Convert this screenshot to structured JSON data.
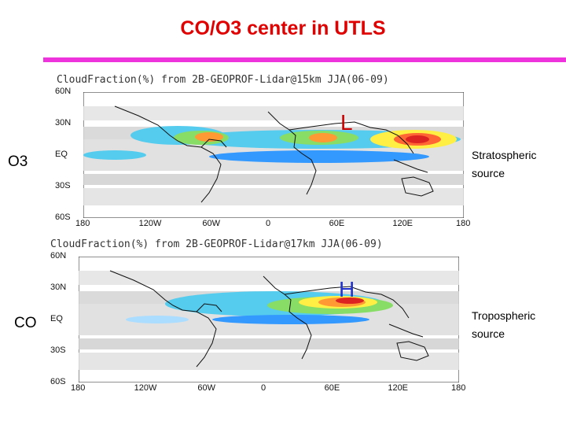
{
  "title": "CO/O3 center in UTLS",
  "colors": {
    "title": "#e00000",
    "rule": "#ee33dd",
    "low_marker": "#cc0000",
    "high_marker": "#2233cc"
  },
  "side_labels": {
    "top": "O3",
    "bottom": "CO"
  },
  "notes": {
    "top": [
      "Stratospheric",
      "source"
    ],
    "bottom": [
      "Tropospheric",
      "source"
    ]
  },
  "maps": [
    {
      "heading": "CloudFraction(%) from 2B-GEOPROF-Lidar@15km JJA(06-09)",
      "marker": "L",
      "lat_ticks": [
        "60N",
        "30N",
        "EQ",
        "30S",
        "60S"
      ],
      "lon_ticks": [
        "180",
        "120W",
        "60W",
        "0",
        "60E",
        "120E",
        "180"
      ]
    },
    {
      "heading": "CloudFraction(%) from 2B-GEOPROF-Lidar@17km JJA(06-09)",
      "marker": "H",
      "lat_ticks": [
        "60N",
        "30N",
        "EQ",
        "30S",
        "60S"
      ],
      "lon_ticks": [
        "180",
        "120W",
        "60W",
        "0",
        "60E",
        "120E",
        "180"
      ]
    }
  ]
}
